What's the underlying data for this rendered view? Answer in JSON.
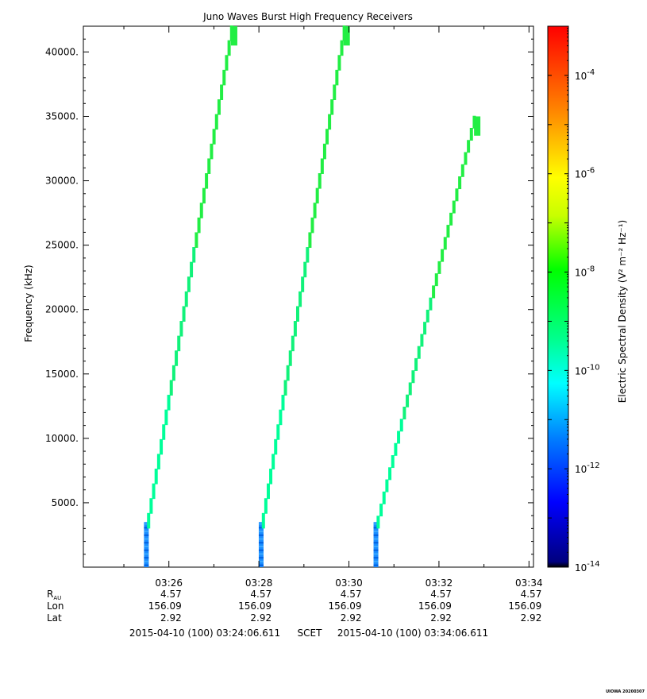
{
  "chart_data": {
    "type": "heatmap",
    "title": "Juno Waves Burst High Frequency Receivers",
    "ylabel": "Frequency (kHz)",
    "ylim": [
      0,
      42000
    ],
    "yticks": [
      5000,
      10000,
      15000,
      20000,
      25000,
      30000,
      35000,
      40000
    ],
    "ytick_labels": [
      "5000.",
      "10000.",
      "15000.",
      "20000.",
      "25000.",
      "30000.",
      "35000.",
      "40000."
    ],
    "xlim_minutes": [
      24.1,
      34.1
    ],
    "xticks_minutes": [
      26,
      28,
      30,
      32,
      34
    ],
    "xtick_labels": [
      "03:26",
      "03:28",
      "03:30",
      "03:32",
      "03:34"
    ],
    "ephemeris": {
      "row_labels": [
        "R_AU",
        "Lon",
        "Lat"
      ],
      "values": [
        [
          "4.57",
          "4.57",
          "4.57",
          "4.57",
          "4.57"
        ],
        [
          "156.09",
          "156.09",
          "156.09",
          "156.09",
          "156.09"
        ],
        [
          "2.92",
          "2.92",
          "2.92",
          "2.92",
          "2.92"
        ]
      ]
    },
    "time_range": {
      "start": "2015-04-10 (100) 03:24:06.611",
      "label": "SCET",
      "end": "2015-04-10 (100) 03:34:06.611"
    },
    "colorbar": {
      "label": "Electric Spectral Density (V² m⁻² Hz⁻¹)",
      "scale": "log",
      "range_exponent": [
        -14,
        -3
      ],
      "tick_exponents": [
        -14,
        -12,
        -10,
        -8,
        -6,
        -4
      ],
      "tick_base": "10"
    },
    "sweeps": [
      {
        "start_minute": 25.55,
        "end_minute": 27.45,
        "f_start_khz": 3000,
        "f_end_khz": 42000,
        "low_band_minute": 25.5,
        "low_band_top_khz": 3500
      },
      {
        "start_minute": 28.1,
        "end_minute": 29.95,
        "f_start_khz": 3000,
        "f_end_khz": 42000,
        "low_band_minute": 28.05,
        "low_band_top_khz": 3500
      },
      {
        "start_minute": 30.65,
        "end_minute": 32.85,
        "f_start_khz": 3000,
        "f_end_khz": 35000,
        "low_band_minute": 30.6,
        "low_band_top_khz": 3500
      }
    ],
    "colors": {
      "low_band": "#1a8cff",
      "mid_band": "#00ff99",
      "high_band": "#22ee44"
    }
  },
  "footer": {
    "stamp": "UIOWA 20200307"
  }
}
